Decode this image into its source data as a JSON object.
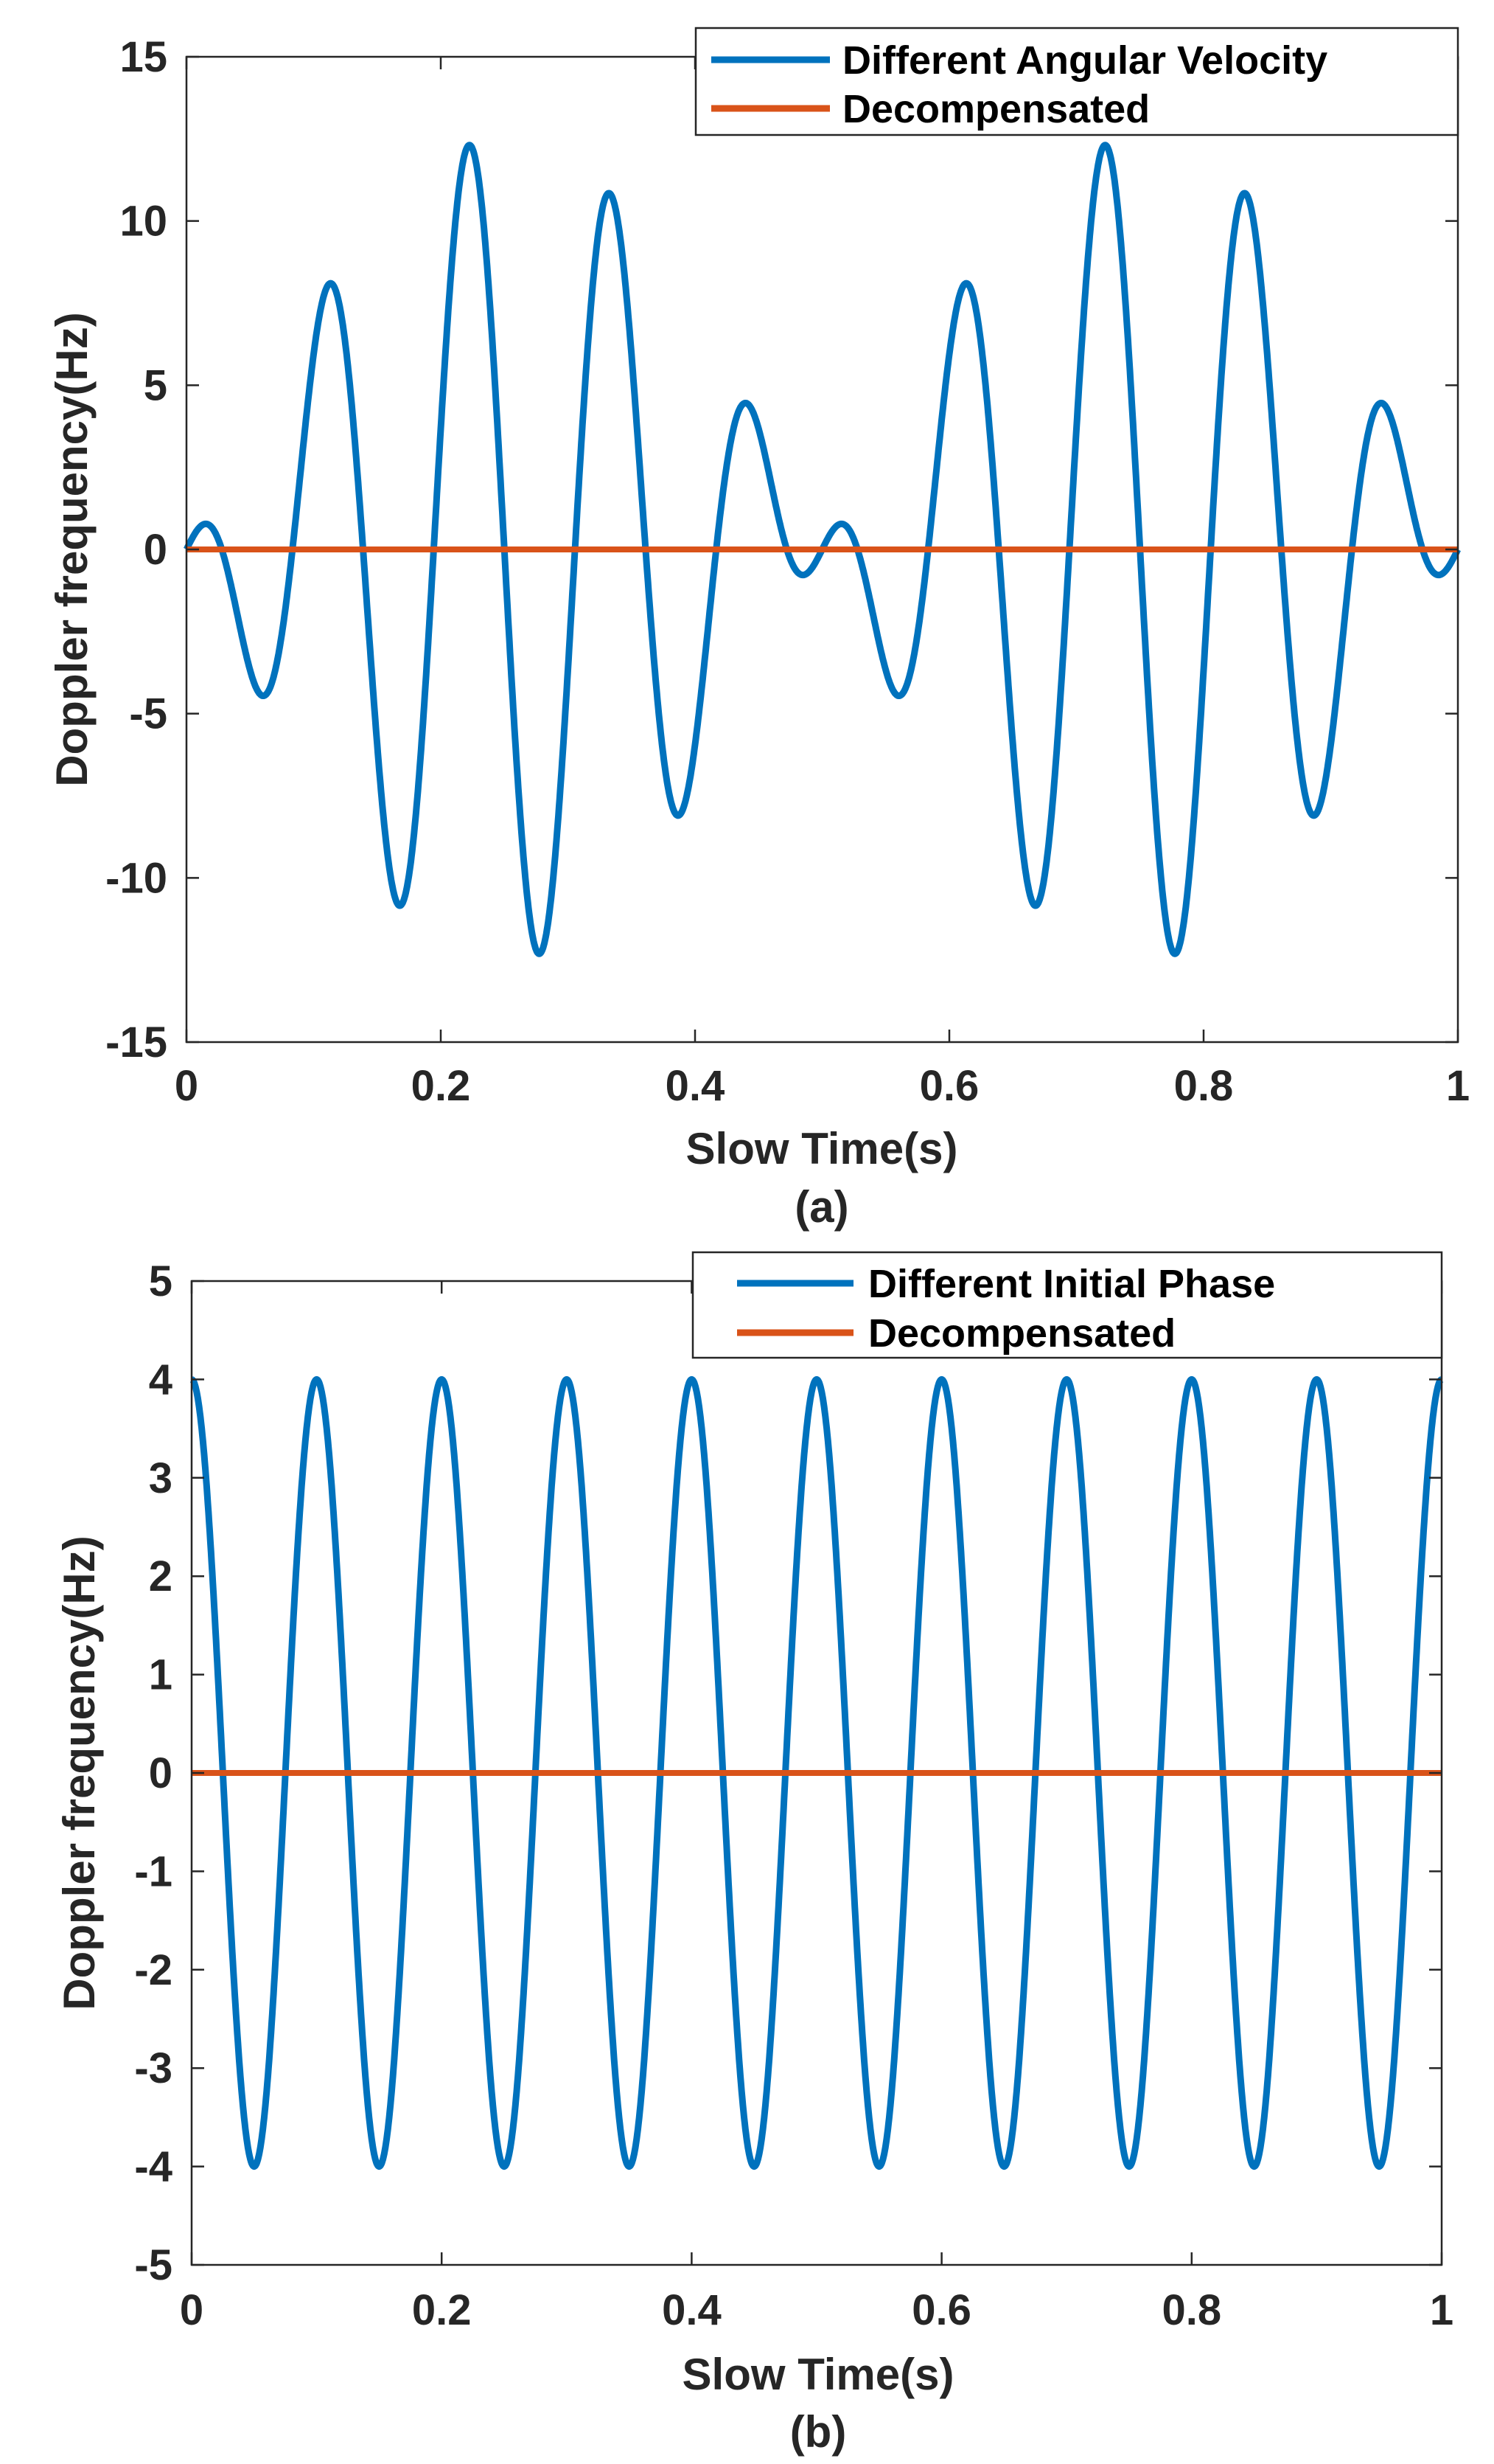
{
  "colors": {
    "series": "#0072BD",
    "decompensated": "#D95319",
    "axis": "#262626"
  },
  "chart_data": [
    {
      "type": "line",
      "panel_label": "(a)",
      "xlabel": "Slow Time(s)",
      "ylabel": "Doppler frequency(Hz)",
      "xlim": [
        0,
        1
      ],
      "ylim": [
        -15,
        15
      ],
      "xticks": [
        "0",
        "0.2",
        "0.4",
        "0.6",
        "0.8",
        "1"
      ],
      "yticks": [
        "15",
        "10",
        "5",
        "0",
        "-5",
        "-10",
        "-15"
      ],
      "grid": false,
      "legend_position": "top-right",
      "series": [
        {
          "name": "Different Angular Velocity",
          "model": "amplitude-modulated sinusoid",
          "envelope_amplitude": 12.5,
          "envelope_frequency_hz": 1,
          "carrier_frequency_hz": 9,
          "carrier_delay_s": 0.25,
          "extrema": [
            [
              0.015,
              0.8
            ],
            [
              0.06,
              -4.4
            ],
            [
              0.113,
              8.1
            ],
            [
              0.168,
              -10.8
            ],
            [
              0.223,
              12.3
            ],
            [
              0.277,
              -12.3
            ],
            [
              0.332,
              10.8
            ],
            [
              0.387,
              -8.1
            ],
            [
              0.44,
              4.4
            ],
            [
              0.485,
              -0.8
            ],
            [
              0.515,
              0.8
            ],
            [
              0.56,
              -4.4
            ],
            [
              0.613,
              8.1
            ],
            [
              0.668,
              -10.8
            ],
            [
              0.723,
              12.3
            ],
            [
              0.777,
              -12.3
            ],
            [
              0.832,
              10.8
            ],
            [
              0.887,
              -8.1
            ],
            [
              0.94,
              4.4
            ],
            [
              0.985,
              -0.8
            ]
          ]
        },
        {
          "name": "Decompensated",
          "x": [
            0,
            1
          ],
          "y": [
            0,
            0
          ]
        }
      ]
    },
    {
      "type": "line",
      "panel_label": "(b)",
      "xlabel": "Slow Time(s)",
      "ylabel": "Doppler frequency(Hz)",
      "xlim": [
        0,
        1
      ],
      "ylim": [
        -5,
        5
      ],
      "xticks": [
        "0",
        "0.2",
        "0.4",
        "0.6",
        "0.8",
        "1"
      ],
      "yticks": [
        "5",
        "4",
        "3",
        "2",
        "1",
        "0",
        "-1",
        "-2",
        "-3",
        "-4",
        "-5"
      ],
      "grid": false,
      "legend_position": "top-right",
      "series": [
        {
          "name": "Different Initial Phase",
          "model": "cosine",
          "amplitude": 4,
          "frequency_hz": 10,
          "phase_rad": 0
        },
        {
          "name": "Decompensated",
          "x": [
            0,
            1
          ],
          "y": [
            0,
            0
          ]
        }
      ]
    }
  ]
}
